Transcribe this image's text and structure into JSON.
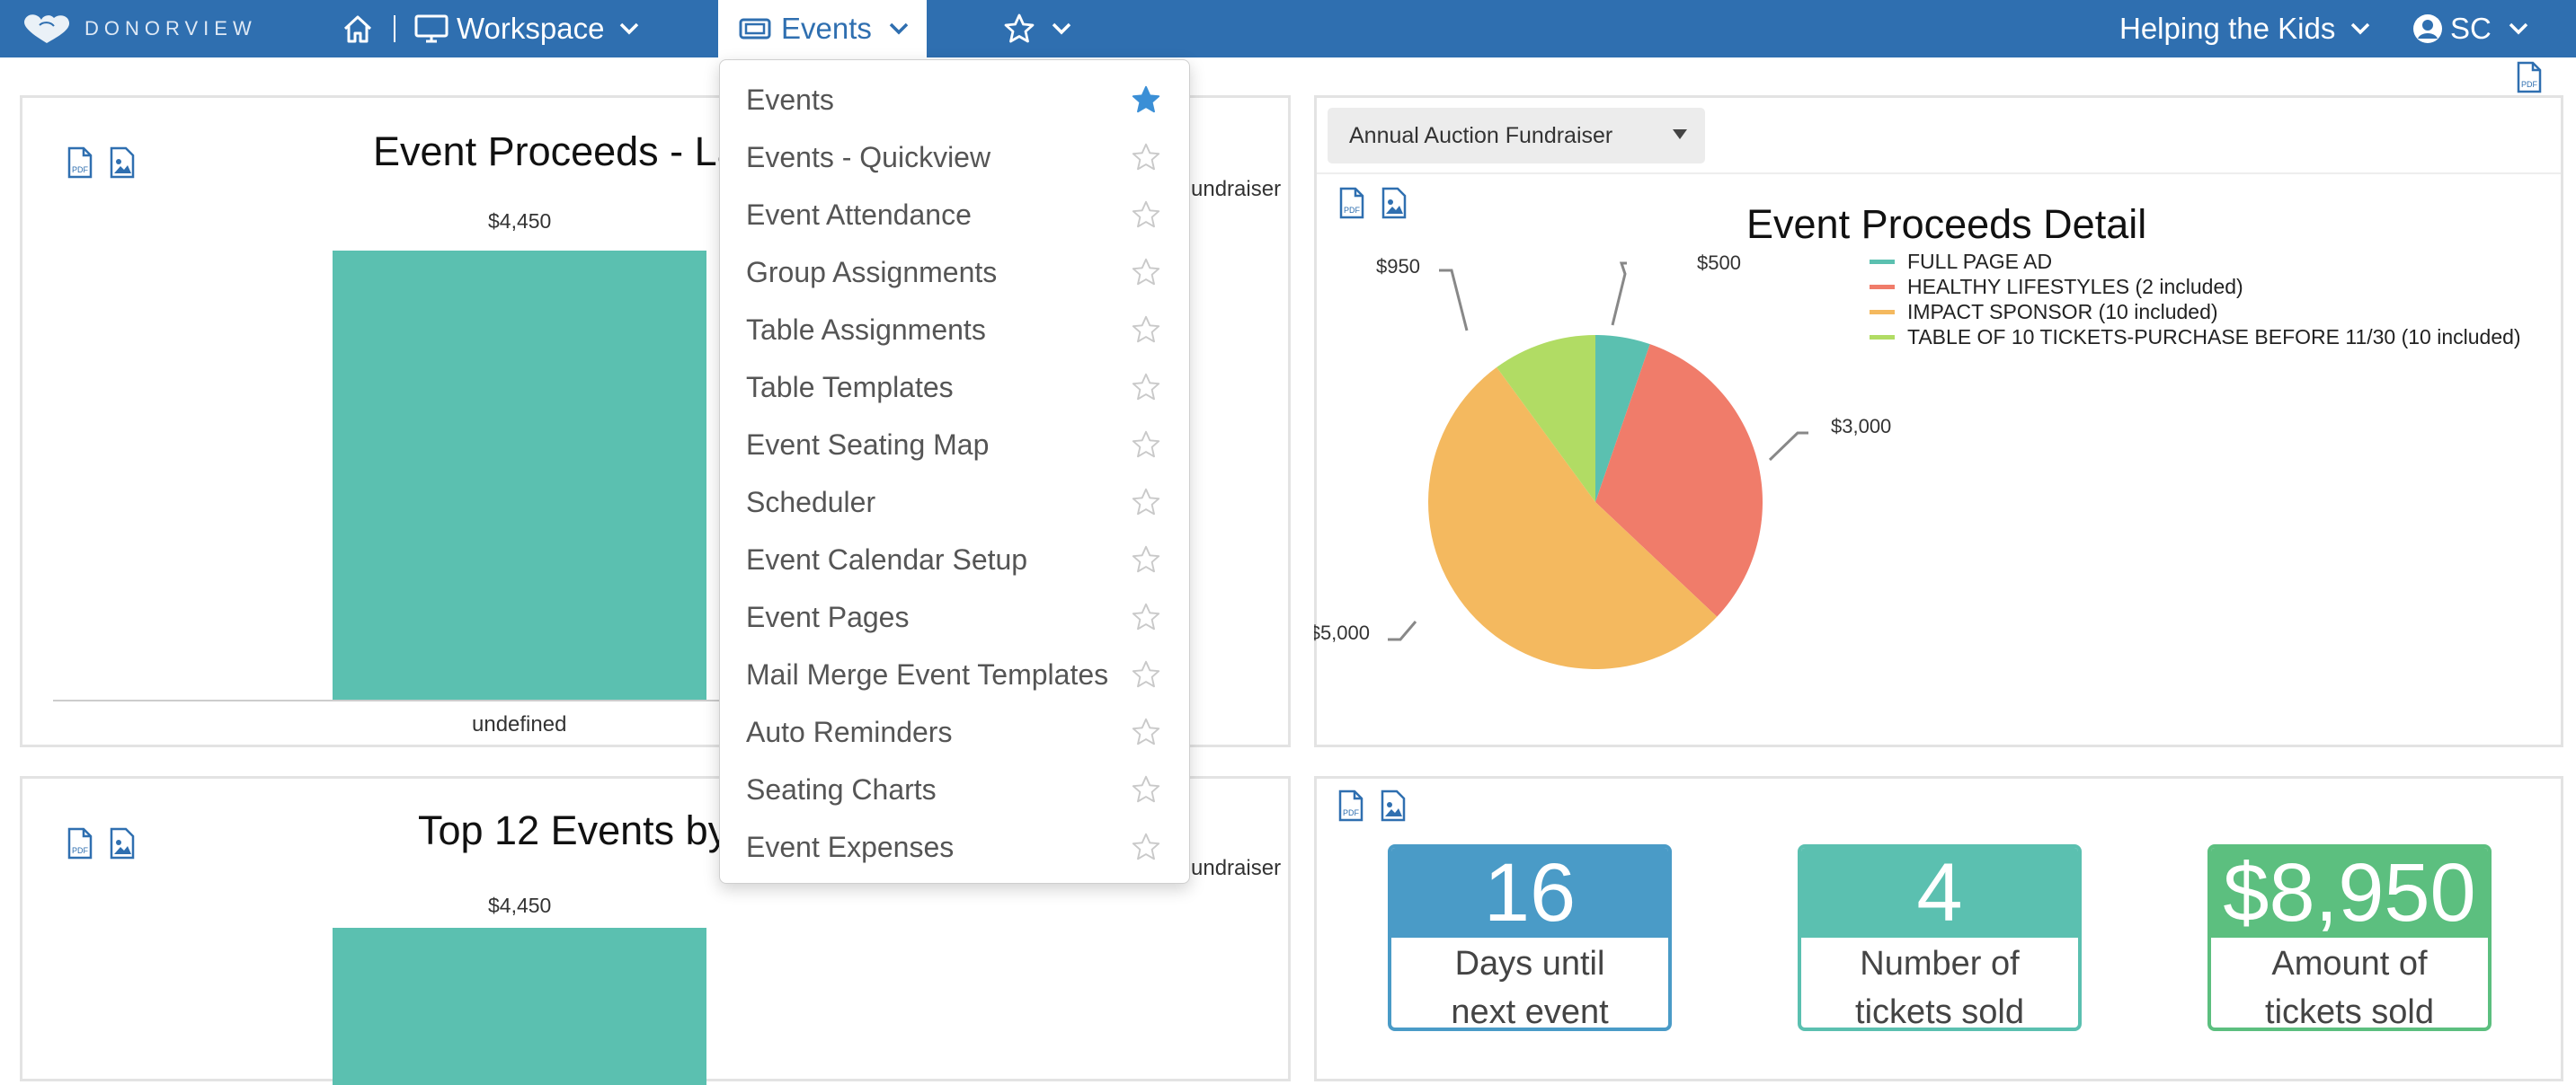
{
  "app": {
    "logo_text": "DONORVIEW",
    "nav": {
      "workspace_label": "Workspace",
      "events_label": "Events",
      "org_label": "Helping the Kids",
      "user_label": "SC"
    }
  },
  "colors": {
    "nav_bg": "#2f6fb0",
    "teal": "#5bc0b0",
    "salmon": "#f07c6a",
    "orange": "#f4b95f",
    "green": "#b1dc64",
    "kpi_blue": "#4a9bc7",
    "kpi_teal": "#5bc0b0",
    "kpi_green": "#5cbf7f"
  },
  "events_menu": {
    "items": [
      {
        "label": "Events",
        "favorite": true
      },
      {
        "label": "Events - Quickview",
        "favorite": false
      },
      {
        "label": "Event Attendance",
        "favorite": false
      },
      {
        "label": "Group Assignments",
        "favorite": false
      },
      {
        "label": "Table Assignments",
        "favorite": false
      },
      {
        "label": "Table Templates",
        "favorite": false
      },
      {
        "label": "Event Seating Map",
        "favorite": false
      },
      {
        "label": "Scheduler",
        "favorite": false
      },
      {
        "label": "Event Calendar Setup",
        "favorite": false
      },
      {
        "label": "Event Pages",
        "favorite": false
      },
      {
        "label": "Mail Merge Event Templates",
        "favorite": false
      },
      {
        "label": "Auto Reminders",
        "favorite": false
      },
      {
        "label": "Seating Charts",
        "favorite": false
      },
      {
        "label": "Event Expenses",
        "favorite": false
      }
    ]
  },
  "panels": {
    "proceeds_last": {
      "title_visible": "Event Proceeds - La",
      "legend_fragment": "undraiser"
    },
    "top12": {
      "title_visible": "Top 12 Events by",
      "legend_fragment": "undraiser"
    },
    "detail": {
      "select_value": "Annual Auction Fundraiser"
    },
    "kpis": [
      {
        "value": "16",
        "label_line1": "Days until",
        "label_line2": "next event"
      },
      {
        "value": "4",
        "label_line1": "Number of",
        "label_line2": "tickets sold"
      },
      {
        "value": "$8,950",
        "label_line1": "Amount of",
        "label_line2": "tickets sold"
      }
    ]
  },
  "chart_data": [
    {
      "type": "bar",
      "title": "Event Proceeds - La",
      "categories": [
        "undefined"
      ],
      "values": [
        4450
      ],
      "data_labels": [
        "$4,450"
      ]
    },
    {
      "type": "pie",
      "title": "Event Proceeds Detail",
      "slices": [
        {
          "name": "FULL PAGE AD",
          "value": 500,
          "label": "$500",
          "color": "#5bc0b0"
        },
        {
          "name": "HEALTHY LIFESTYLES (2 included)",
          "value": 3000,
          "label": "$3,000",
          "color": "#f07c6a"
        },
        {
          "name": "IMPACT SPONSOR (10 included)",
          "value": 5000,
          "label": "$5,000",
          "color": "#f4b95f"
        },
        {
          "name": "TABLE OF 10 TICKETS-PURCHASE BEFORE 11/30 (10 included)",
          "value": 950,
          "label": "$950",
          "color": "#b1dc64"
        }
      ],
      "legend_position": "top-right"
    },
    {
      "type": "bar",
      "title": "Top 12 Events by",
      "categories": [
        ""
      ],
      "values": [
        4450
      ],
      "data_labels": [
        "$4,450"
      ]
    }
  ]
}
